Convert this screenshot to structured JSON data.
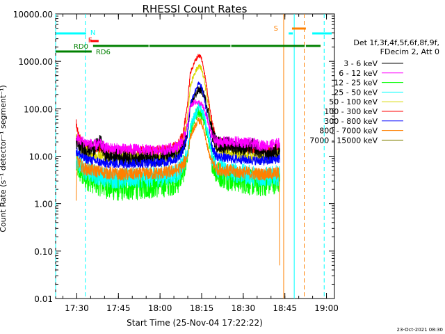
{
  "chart_data": {
    "type": "line",
    "title": "RHESSI Count Rates",
    "xlabel": "Start Time (25-Nov-04 17:22:22)",
    "ylabel": "Count Rate (s⁻¹ detector⁻¹ segment⁻¹)",
    "x_unit": "minutes after 17:22:22 UT",
    "xlim": [
      0,
      100.5
    ],
    "ylim": [
      0.01,
      10000
    ],
    "y_scale": "log",
    "x_ticks": [
      {
        "t": 7.63,
        "label": "17:30"
      },
      {
        "t": 22.63,
        "label": "17:45"
      },
      {
        "t": 37.63,
        "label": "18:00"
      },
      {
        "t": 52.63,
        "label": "18:15"
      },
      {
        "t": 67.63,
        "label": "18:30"
      },
      {
        "t": 82.63,
        "label": "18:45"
      },
      {
        "t": 97.63,
        "label": "19:00"
      }
    ],
    "y_ticks": [
      {
        "v": 0.01,
        "label": "0.01"
      },
      {
        "v": 0.1,
        "label": "0.10"
      },
      {
        "v": 1,
        "label": "1.00"
      },
      {
        "v": 10,
        "label": "10.00"
      },
      {
        "v": 100,
        "label": "100.00"
      },
      {
        "v": 1000,
        "label": "1000.00"
      },
      {
        "v": 10000,
        "label": "10000.00"
      }
    ],
    "grid": false,
    "legend_position": "right",
    "legend_header": [
      "Det 1f,3f,4f,5f,6f,8f,9f,",
      "FDecim 2, Att 0"
    ],
    "data_start": 7.2,
    "data_end": 80.8,
    "series": [
      {
        "name": "3 - 6 keV",
        "color": "#000000",
        "values": [
          [
            7.4,
            21
          ],
          [
            8.5,
            15
          ],
          [
            12,
            14
          ],
          [
            15,
            16
          ],
          [
            16,
            20
          ],
          [
            18,
            11
          ],
          [
            20,
            10
          ],
          [
            30,
            9
          ],
          [
            36,
            9
          ],
          [
            40,
            10
          ],
          [
            44,
            12
          ],
          [
            46,
            15
          ],
          [
            47.5,
            27
          ],
          [
            48.5,
            110
          ],
          [
            50,
            180
          ],
          [
            51.5,
            250
          ],
          [
            52.5,
            245
          ],
          [
            53.5,
            200
          ],
          [
            55,
            90
          ],
          [
            56.5,
            30
          ],
          [
            58,
            18
          ],
          [
            63,
            17
          ],
          [
            66,
            16
          ],
          [
            68,
            15
          ],
          [
            71,
            16
          ],
          [
            74,
            13
          ],
          [
            77,
            11
          ],
          [
            80.8,
            14
          ]
        ]
      },
      {
        "name": "6 - 12 keV",
        "color": "#ff00ff",
        "values": [
          [
            7.4,
            24
          ],
          [
            10,
            20
          ],
          [
            14,
            17
          ],
          [
            16,
            18
          ],
          [
            18,
            15
          ],
          [
            25,
            14
          ],
          [
            30,
            14
          ],
          [
            36,
            13
          ],
          [
            40,
            14
          ],
          [
            44,
            16
          ],
          [
            46,
            22
          ],
          [
            47.5,
            45
          ],
          [
            48.5,
            110
          ],
          [
            50,
            140
          ],
          [
            51.5,
            135
          ],
          [
            52.5,
            125
          ],
          [
            53.5,
            100
          ],
          [
            55,
            50
          ],
          [
            56.5,
            25
          ],
          [
            58,
            20
          ],
          [
            66,
            20
          ],
          [
            70,
            19
          ],
          [
            74,
            17
          ],
          [
            77,
            17
          ],
          [
            80.8,
            19
          ]
        ]
      },
      {
        "name": "12 - 25 keV",
        "color": "#00ff00",
        "values": [
          [
            7.4,
            6.5
          ],
          [
            10,
            3.8
          ],
          [
            14,
            3
          ],
          [
            18,
            2.4
          ],
          [
            22,
            2.1
          ],
          [
            28,
            2.2
          ],
          [
            34,
            2.4
          ],
          [
            40,
            2.6
          ],
          [
            44,
            3
          ],
          [
            46,
            5
          ],
          [
            47.5,
            9
          ],
          [
            48.5,
            30
          ],
          [
            50,
            60
          ],
          [
            51.5,
            90
          ],
          [
            52.5,
            80
          ],
          [
            53.5,
            55
          ],
          [
            55,
            25
          ],
          [
            56.5,
            8
          ],
          [
            58,
            4.5
          ],
          [
            62,
            3.6
          ],
          [
            66,
            3.2
          ],
          [
            70,
            2.8
          ],
          [
            74,
            2.6
          ],
          [
            77,
            2.8
          ],
          [
            80.8,
            3.2
          ]
        ]
      },
      {
        "name": "25 - 50 keV",
        "color": "#00ffff",
        "values": [
          [
            7.4,
            9
          ],
          [
            10,
            5
          ],
          [
            14,
            4.2
          ],
          [
            18,
            3.6
          ],
          [
            22,
            3.4
          ],
          [
            28,
            3.5
          ],
          [
            34,
            3.6
          ],
          [
            40,
            3.9
          ],
          [
            44,
            4.5
          ],
          [
            46,
            6.5
          ],
          [
            47.5,
            11
          ],
          [
            48.5,
            40
          ],
          [
            50,
            70
          ],
          [
            51.5,
            110
          ],
          [
            52.5,
            100
          ],
          [
            53.5,
            70
          ],
          [
            55,
            28
          ],
          [
            56.5,
            10
          ],
          [
            58,
            6
          ],
          [
            62,
            4.8
          ],
          [
            66,
            4.4
          ],
          [
            70,
            4
          ],
          [
            74,
            3.6
          ],
          [
            77,
            3.7
          ],
          [
            80.8,
            4
          ]
        ]
      },
      {
        "name": "50 - 100 keV",
        "color": "#d8d800",
        "values": [
          [
            7.4,
            25
          ],
          [
            10,
            13
          ],
          [
            14,
            11
          ],
          [
            18,
            10
          ],
          [
            22,
            9.5
          ],
          [
            28,
            9.5
          ],
          [
            34,
            9.5
          ],
          [
            40,
            10
          ],
          [
            44,
            12
          ],
          [
            46,
            20
          ],
          [
            47.5,
            60
          ],
          [
            48.5,
            300
          ],
          [
            50,
            550
          ],
          [
            51.5,
            800
          ],
          [
            52.5,
            720
          ],
          [
            53.5,
            420
          ],
          [
            55,
            120
          ],
          [
            56.5,
            30
          ],
          [
            58,
            15
          ],
          [
            62,
            12
          ],
          [
            66,
            11
          ],
          [
            70,
            10
          ],
          [
            74,
            9.5
          ],
          [
            77,
            9.5
          ],
          [
            80.8,
            11
          ]
        ]
      },
      {
        "name": "100 - 300 keV",
        "color": "#ff0000",
        "values": [
          [
            7.4,
            50
          ],
          [
            8.5,
            25
          ],
          [
            10,
            18
          ],
          [
            14,
            15
          ],
          [
            18,
            14
          ],
          [
            22,
            13
          ],
          [
            28,
            13
          ],
          [
            34,
            13
          ],
          [
            40,
            14
          ],
          [
            44,
            17
          ],
          [
            46,
            30
          ],
          [
            47.5,
            120
          ],
          [
            48.5,
            550
          ],
          [
            50,
            950
          ],
          [
            51.5,
            1350
          ],
          [
            52.5,
            1200
          ],
          [
            53.5,
            650
          ],
          [
            55,
            180
          ],
          [
            56.5,
            45
          ],
          [
            58,
            22
          ],
          [
            62,
            16
          ],
          [
            66,
            15
          ],
          [
            70,
            14
          ],
          [
            74,
            13
          ],
          [
            77,
            13
          ],
          [
            80.8,
            16
          ]
        ]
      },
      {
        "name": "300 - 800 keV",
        "color": "#0000ff",
        "values": [
          [
            7.4,
            13
          ],
          [
            10,
            9
          ],
          [
            14,
            8
          ],
          [
            18,
            7
          ],
          [
            22,
            7
          ],
          [
            28,
            7
          ],
          [
            34,
            7.2
          ],
          [
            40,
            7.6
          ],
          [
            44,
            9
          ],
          [
            46,
            14
          ],
          [
            47.5,
            28
          ],
          [
            48.5,
            120
          ],
          [
            50,
            220
          ],
          [
            51.5,
            340
          ],
          [
            52.5,
            300
          ],
          [
            53.5,
            180
          ],
          [
            55,
            50
          ],
          [
            56.5,
            15
          ],
          [
            58,
            10
          ],
          [
            62,
            9
          ],
          [
            66,
            8.6
          ],
          [
            70,
            8.3
          ],
          [
            74,
            8
          ],
          [
            77,
            8
          ],
          [
            80.8,
            9
          ]
        ]
      },
      {
        "name": "800 - 7000 keV",
        "color": "#ff8000",
        "values": [
          [
            7.4,
            1.5
          ],
          [
            7.8,
            8
          ],
          [
            10,
            5.5
          ],
          [
            14,
            5
          ],
          [
            18,
            4.5
          ],
          [
            22,
            4.2
          ],
          [
            28,
            4.2
          ],
          [
            34,
            4.3
          ],
          [
            40,
            4.5
          ],
          [
            44,
            5.2
          ],
          [
            46,
            6.5
          ],
          [
            47.5,
            10
          ],
          [
            48.5,
            25
          ],
          [
            50,
            40
          ],
          [
            51.5,
            58
          ],
          [
            52.5,
            52
          ],
          [
            53.5,
            33
          ],
          [
            55,
            13
          ],
          [
            56.5,
            7
          ],
          [
            58,
            5.5
          ],
          [
            62,
            5
          ],
          [
            66,
            4.6
          ],
          [
            70,
            4.4
          ],
          [
            74,
            4.2
          ],
          [
            77,
            4.2
          ],
          [
            80.5,
            4.5
          ],
          [
            80.8,
            0.05
          ]
        ]
      },
      {
        "name": "7000 - 15000 keV",
        "color": "#808000",
        "values": []
      }
    ],
    "attenuator_bars": [
      {
        "label": "RD0",
        "color": "#008000",
        "segments": [
          [
            0,
            13
          ]
        ]
      },
      {
        "label": "RD6",
        "color": "#008000",
        "segments": [
          [
            13.5,
            33.5
          ],
          [
            33.8,
            63
          ],
          [
            63.3,
            89.8
          ],
          [
            90.2,
            95.5
          ]
        ]
      }
    ],
    "flag_bars": [
      {
        "label": "N",
        "color": "#00ffff",
        "segments": [
          [
            0,
            11
          ],
          [
            84,
            85.5
          ],
          [
            92.5,
            99.5
          ]
        ]
      },
      {
        "label": "F",
        "color": "#ff0000",
        "segments": [
          [
            12.5,
            15.5
          ]
        ]
      },
      {
        "label": "S",
        "color": "#ff8000",
        "segments": [
          [
            85.2,
            90.2
          ]
        ]
      }
    ],
    "vertical_lines": [
      {
        "t": 0,
        "color": "#00ffff",
        "style": "dashed"
      },
      {
        "t": 10.7,
        "color": "#00ffff",
        "style": "dashed"
      },
      {
        "t": 82.2,
        "color": "#ff8000",
        "style": "solid"
      },
      {
        "t": 86.0,
        "color": "#00ffff",
        "style": "solid"
      },
      {
        "t": 89.6,
        "color": "#ff8000",
        "style": "dashed"
      },
      {
        "t": 96.8,
        "color": "#00ffff",
        "style": "dashed"
      }
    ],
    "footer_date": "23-Oct-2021 08:30"
  }
}
